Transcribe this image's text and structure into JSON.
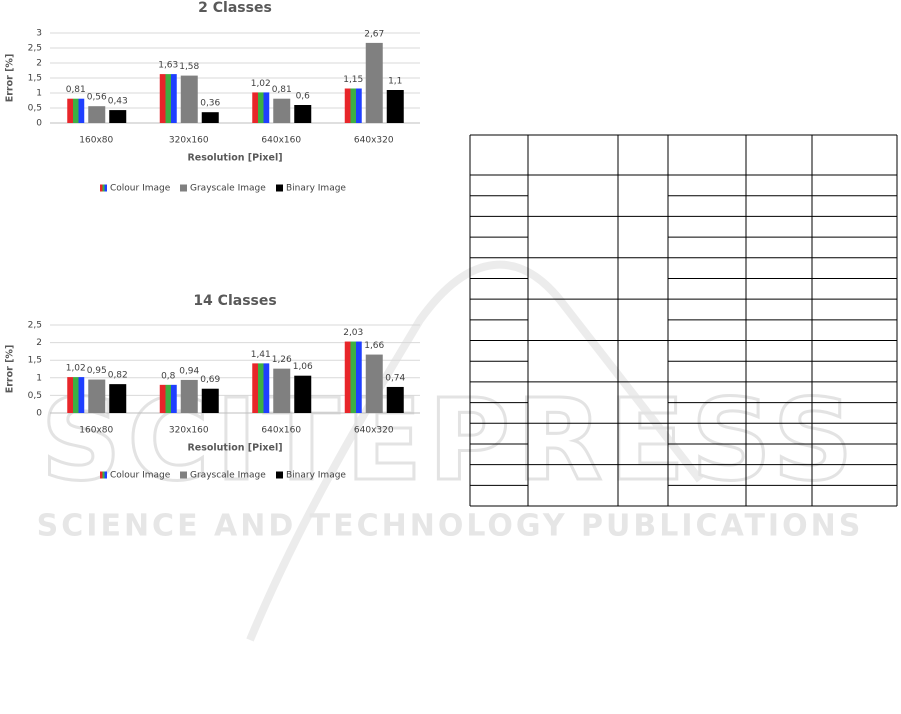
{
  "chart_data": [
    {
      "type": "bar",
      "title": "2 Classes",
      "x_label": "Resolution [Pixel]",
      "y_label": "Error [%]",
      "categories": [
        "160x80",
        "320x160",
        "640x160",
        "640x320"
      ],
      "ylim": [
        0,
        3
      ],
      "yticks": [
        0,
        {
          "value": 0.5,
          "label": "0,5"
        },
        1,
        {
          "value": 1.5,
          "label": "1,5"
        },
        2,
        {
          "value": 2.5,
          "label": "2,5"
        },
        3
      ],
      "grid": true,
      "series": [
        {
          "name": "Colour Image",
          "color": [
            "#e8262a",
            "#3cb043",
            "#1f3fff"
          ],
          "values": [
            0.81,
            1.63,
            1.02,
            1.15
          ],
          "value_labels": [
            "0,81",
            "1,63",
            "1,02",
            "1,15"
          ]
        },
        {
          "name": "Grayscale Image",
          "color": "#808080",
          "values": [
            0.56,
            1.58,
            0.81,
            2.67
          ],
          "value_labels": [
            "0,56",
            "1,58",
            "0,81",
            "2,67"
          ]
        },
        {
          "name": "Binary Image",
          "color": "#000000",
          "values": [
            0.43,
            0.36,
            0.6,
            1.1
          ],
          "value_labels": [
            "0,43",
            "0,36",
            "0,6",
            "1,1"
          ]
        }
      ]
    },
    {
      "type": "bar",
      "title": "14 Classes",
      "x_label": "Resolution [Pixel]",
      "y_label": "Error [%]",
      "categories": [
        "160x80",
        "320x160",
        "640x160",
        "640x320"
      ],
      "ylim": [
        0,
        2.5
      ],
      "yticks": [
        0,
        {
          "value": 0.5,
          "label": "0,5"
        },
        1,
        {
          "value": 1.5,
          "label": "1,5"
        },
        2,
        {
          "value": 2.5,
          "label": "2,5"
        }
      ],
      "grid": true,
      "series": [
        {
          "name": "Colour Image",
          "color": [
            "#e8262a",
            "#3cb043",
            "#1f3fff"
          ],
          "values": [
            1.02,
            0.8,
            1.41,
            2.03
          ],
          "value_labels": [
            "1,02",
            "0,8",
            "1,41",
            "2,03"
          ]
        },
        {
          "name": "Grayscale Image",
          "color": "#808080",
          "values": [
            0.95,
            0.94,
            1.26,
            1.66
          ],
          "value_labels": [
            "0,95",
            "0,94",
            "1,26",
            "1,66"
          ]
        },
        {
          "name": "Binary Image",
          "color": "#000000",
          "values": [
            0.82,
            0.69,
            1.06,
            0.74
          ],
          "value_labels": [
            "0,82",
            "0,69",
            "1,06",
            "0,74"
          ]
        }
      ]
    }
  ],
  "watermark": {
    "logo": "SCITEPRESS",
    "text": "SCIENCE AND TECHNOLOGY PUBLICATIONS"
  }
}
